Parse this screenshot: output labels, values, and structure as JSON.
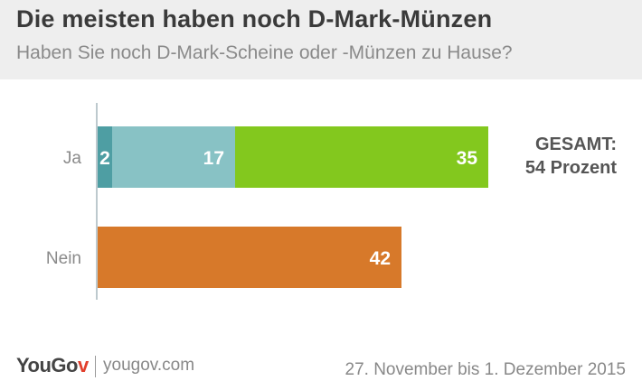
{
  "header": {
    "title": "Die meisten haben noch D-Mark-Münzen",
    "subtitle": "Haben Sie noch D-Mark-Scheine oder -Münzen zu Hause?"
  },
  "chart_data": {
    "type": "bar",
    "orientation": "horizontal",
    "stacked": true,
    "categories": [
      "Ja",
      "Nein"
    ],
    "segments": [
      {
        "category": "Ja",
        "value": 2,
        "color": "#4e9ea3"
      },
      {
        "category": "Ja",
        "value": 17,
        "color": "#88c2c5"
      },
      {
        "category": "Ja",
        "value": 35,
        "color": "#83c81e"
      },
      {
        "category": "Nein",
        "value": 42,
        "color": "#d7792a"
      }
    ],
    "xlim": [
      0,
      56
    ],
    "grid": false,
    "axis_color": "#bdc9ce"
  },
  "total": {
    "line1": "GESAMT:",
    "line2": "54 Prozent"
  },
  "footer": {
    "logo_main": "YouGov",
    "url": "yougov.com",
    "date": "27. November bis 1. Dezember 2015"
  }
}
